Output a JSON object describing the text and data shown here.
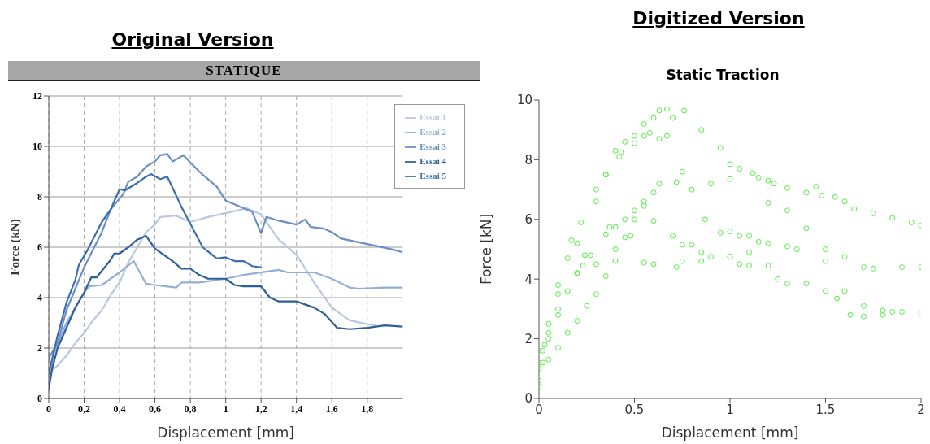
{
  "chart_data": [
    {
      "type": "line",
      "title": "STATIQUE",
      "annotations": [
        "Original Version"
      ],
      "xlabel": "Displacement [mm]",
      "ylabel": "Force (kN)",
      "xlim": [
        0,
        2
      ],
      "xticks": [
        0,
        {
          "value": 0.2,
          "label": "0,2"
        },
        {
          "value": 0.4,
          "label": "0,4"
        },
        {
          "value": 0.6,
          "label": "0,6"
        },
        {
          "value": 0.8,
          "label": "0,8"
        },
        1,
        {
          "value": 1.2,
          "label": "1,2"
        },
        {
          "value": 1.4,
          "label": "1,4"
        },
        {
          "value": 1.6,
          "label": "1,6"
        },
        {
          "value": 1.8,
          "label": "1,8"
        }
      ],
      "ylim": [
        0,
        12
      ],
      "yticks": [
        0,
        2,
        4,
        6,
        8,
        10,
        12
      ],
      "grid": true,
      "legend": "top right",
      "line_style": "solid",
      "series": [
        {
          "name": "Essai 1",
          "color": "#b8c8e0",
          "x": [
            0,
            0.05,
            0.1,
            0.15,
            0.2,
            0.25,
            0.3,
            0.35,
            0.4,
            0.45,
            0.5,
            0.55,
            0.6,
            0.63,
            0.72,
            0.8,
            0.9,
            1.0,
            1.12,
            1.2,
            1.3,
            1.4,
            1.5,
            1.6,
            1.7,
            1.8,
            1.85
          ],
          "values": [
            1.0,
            1.3,
            1.7,
            2.2,
            2.6,
            3.1,
            3.5,
            4.1,
            4.6,
            5.4,
            6.0,
            6.6,
            6.9,
            7.2,
            7.25,
            7.0,
            7.2,
            7.35,
            7.55,
            7.3,
            6.3,
            5.7,
            4.6,
            3.6,
            3.1,
            2.95,
            2.9
          ]
        },
        {
          "name": "Essai 2",
          "color": "#93afd6",
          "x": [
            0,
            0.03,
            0.1,
            0.2,
            0.23,
            0.3,
            0.4,
            0.48,
            0.55,
            0.6,
            0.72,
            0.75,
            0.85,
            1.0,
            1.1,
            1.3,
            1.35,
            1.5,
            1.6,
            1.7,
            1.75,
            1.9,
            2.0
          ],
          "values": [
            0.6,
            1.8,
            3.0,
            4.2,
            4.45,
            4.5,
            5.0,
            5.45,
            4.55,
            4.5,
            4.4,
            4.6,
            4.6,
            4.75,
            4.9,
            5.1,
            5.0,
            5.0,
            4.75,
            4.4,
            4.35,
            4.4,
            4.4
          ]
        },
        {
          "name": "Essai 3",
          "color": "#6a8fc6",
          "x": [
            0,
            0.05,
            0.1,
            0.2,
            0.3,
            0.35,
            0.42,
            0.45,
            0.5,
            0.55,
            0.6,
            0.63,
            0.67,
            0.7,
            0.76,
            0.85,
            0.95,
            1.0,
            1.05,
            1.15,
            1.2,
            1.23,
            1.3,
            1.4,
            1.45,
            1.48,
            1.55,
            1.6,
            1.65,
            1.75,
            1.85,
            1.95,
            2.0
          ],
          "values": [
            1.6,
            2.2,
            3.5,
            5.2,
            6.6,
            7.5,
            8.1,
            8.6,
            8.8,
            9.2,
            9.4,
            9.65,
            9.7,
            9.4,
            9.65,
            9.0,
            8.4,
            7.85,
            7.7,
            7.4,
            6.55,
            7.2,
            7.05,
            6.9,
            7.1,
            6.8,
            6.75,
            6.6,
            6.35,
            6.2,
            6.05,
            5.9,
            5.8
          ]
        },
        {
          "name": "Essai 4",
          "color": "#2f5f9a",
          "x": [
            0,
            0.02,
            0.05,
            0.1,
            0.15,
            0.2,
            0.24,
            0.27,
            0.35,
            0.37,
            0.4,
            0.45,
            0.5,
            0.55,
            0.6,
            0.7,
            0.75,
            0.8,
            0.85,
            0.9,
            1.0,
            1.05,
            1.1,
            1.2,
            1.25,
            1.3,
            1.4,
            1.5,
            1.56,
            1.63,
            1.7,
            1.8,
            1.9,
            2.0
          ],
          "values": [
            0.4,
            1.2,
            2.0,
            2.8,
            3.6,
            4.2,
            4.8,
            4.8,
            5.5,
            5.75,
            5.75,
            6.0,
            6.3,
            6.45,
            5.95,
            5.45,
            5.15,
            5.15,
            4.9,
            4.75,
            4.75,
            4.5,
            4.45,
            4.45,
            4.0,
            3.85,
            3.85,
            3.6,
            3.35,
            2.8,
            2.75,
            2.8,
            2.9,
            2.85
          ]
        },
        {
          "name": "Essai 5",
          "color": "#3d6fb0",
          "x": [
            0,
            0.02,
            0.05,
            0.1,
            0.15,
            0.17,
            0.22,
            0.3,
            0.35,
            0.4,
            0.43,
            0.5,
            0.55,
            0.58,
            0.63,
            0.67,
            0.75,
            0.87,
            0.95,
            1.0,
            1.05,
            1.1,
            1.15,
            1.2
          ],
          "values": [
            1.0,
            1.6,
            2.5,
            3.8,
            4.7,
            5.3,
            5.9,
            7.0,
            7.5,
            8.3,
            8.25,
            8.55,
            8.8,
            8.9,
            8.7,
            8.8,
            7.6,
            6.0,
            5.55,
            5.6,
            5.45,
            5.45,
            5.25,
            5.2
          ]
        }
      ]
    },
    {
      "type": "scatter",
      "title": "Static Traction",
      "annotations": [
        "Digitized Version"
      ],
      "xlabel": "Displacement [mm]",
      "ylabel": "Force [kN]",
      "xlim": [
        0,
        2
      ],
      "xticks": [
        0,
        0.5,
        1,
        1.5,
        2
      ],
      "ylim": [
        0,
        10
      ],
      "yticks": [
        0,
        2,
        4,
        6,
        8,
        10
      ],
      "marker": "circle",
      "series": [
        {
          "color": "#55ee44",
          "x": [
            0,
            0.05,
            0.1,
            0.15,
            0.2,
            0.25,
            0.3,
            0.35,
            0.4,
            0.45,
            0.5,
            0.55,
            0.6,
            0.63,
            0.72,
            0.8,
            0.9,
            1.0,
            1.12,
            1.2,
            1.3,
            1.4,
            1.5,
            1.6,
            1.7,
            1.8,
            1.85
          ],
          "values": [
            1.2,
            1.3,
            1.7,
            2.2,
            2.6,
            3.1,
            3.5,
            4.1,
            4.6,
            5.4,
            6.0,
            6.6,
            6.9,
            7.2,
            7.25,
            7.0,
            7.2,
            7.35,
            7.55,
            7.3,
            6.3,
            5.7,
            4.6,
            3.6,
            3.1,
            2.95,
            2.9
          ]
        },
        {
          "color": "#55ee44",
          "x": [
            0,
            0.03,
            0.1,
            0.2,
            0.23,
            0.3,
            0.4,
            0.48,
            0.55,
            0.6,
            0.72,
            0.75,
            0.85,
            1.0,
            1.1,
            1.3,
            1.35,
            1.5,
            1.6,
            1.7,
            1.75,
            1.9,
            2.0
          ],
          "values": [
            0.6,
            1.8,
            3.0,
            4.2,
            4.45,
            4.5,
            5.0,
            5.45,
            4.55,
            4.5,
            4.4,
            4.6,
            4.6,
            4.75,
            4.9,
            5.1,
            5.0,
            5.0,
            4.75,
            4.4,
            4.35,
            4.4,
            4.4
          ]
        },
        {
          "color": "#55ee44",
          "x": [
            0,
            0.05,
            0.1,
            0.2,
            0.3,
            0.35,
            0.42,
            0.45,
            0.5,
            0.55,
            0.6,
            0.63,
            0.67,
            0.7,
            0.76,
            0.85,
            0.95,
            1.0,
            1.05,
            1.15,
            1.2,
            1.23,
            1.3,
            1.4,
            1.45,
            1.48,
            1.55,
            1.6,
            1.65,
            1.75,
            1.85,
            1.95,
            2.0
          ],
          "values": [
            1.6,
            2.2,
            3.5,
            5.2,
            6.6,
            7.5,
            8.1,
            8.6,
            8.8,
            9.2,
            9.4,
            9.65,
            9.7,
            9.4,
            9.65,
            9.0,
            8.4,
            7.85,
            7.7,
            7.4,
            6.55,
            7.2,
            7.05,
            6.9,
            7.1,
            6.8,
            6.75,
            6.6,
            6.35,
            6.2,
            6.05,
            5.9,
            5.8
          ]
        },
        {
          "color": "#55ee44",
          "x": [
            0,
            0.02,
            0.05,
            0.1,
            0.15,
            0.2,
            0.24,
            0.27,
            0.35,
            0.37,
            0.4,
            0.45,
            0.5,
            0.55,
            0.6,
            0.7,
            0.75,
            0.8,
            0.85,
            0.9,
            1.0,
            1.05,
            1.1,
            1.2,
            1.25,
            1.3,
            1.4,
            1.5,
            1.56,
            1.63,
            1.7,
            1.8,
            1.9,
            2.0
          ],
          "values": [
            0.4,
            1.2,
            2.0,
            2.8,
            3.6,
            4.2,
            4.8,
            4.8,
            5.5,
            5.75,
            5.75,
            6.0,
            6.3,
            6.45,
            5.95,
            5.45,
            5.15,
            5.15,
            4.9,
            4.75,
            4.75,
            4.5,
            4.45,
            4.45,
            4.0,
            3.85,
            3.85,
            3.6,
            3.35,
            2.8,
            2.75,
            2.8,
            2.9,
            2.85
          ]
        },
        {
          "color": "#55ee44",
          "x": [
            0,
            0.02,
            0.05,
            0.1,
            0.15,
            0.17,
            0.22,
            0.3,
            0.35,
            0.4,
            0.43,
            0.5,
            0.55,
            0.58,
            0.63,
            0.67,
            0.75,
            0.87,
            0.95,
            1.0,
            1.05,
            1.1,
            1.15,
            1.2
          ],
          "values": [
            1.0,
            1.6,
            2.5,
            3.8,
            4.7,
            5.3,
            5.9,
            7.0,
            7.5,
            8.3,
            8.25,
            8.55,
            8.8,
            8.9,
            8.7,
            8.8,
            7.6,
            6.0,
            5.55,
            5.6,
            5.45,
            5.45,
            5.25,
            5.2
          ]
        }
      ]
    }
  ]
}
